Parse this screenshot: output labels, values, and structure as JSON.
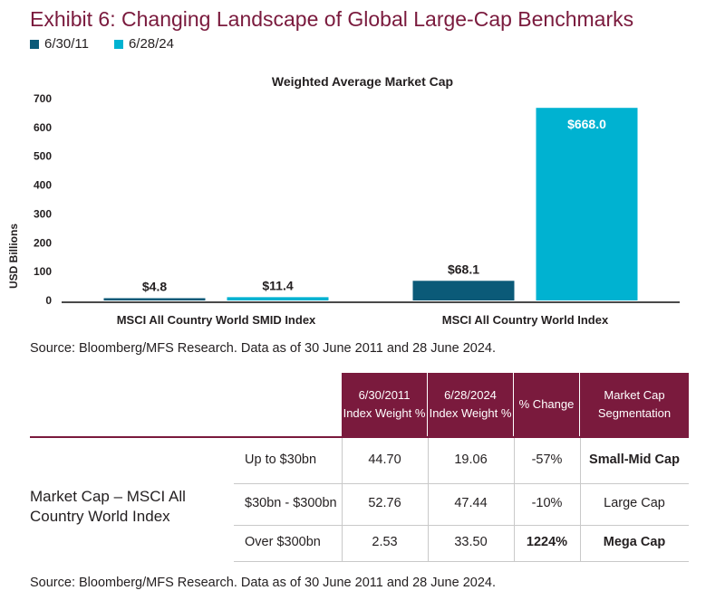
{
  "exhibit_title": "Exhibit 6: Changing Landscape of Global Large-Cap Benchmarks",
  "legend": [
    {
      "label": "6/30/11",
      "color": "#0b5a78"
    },
    {
      "label": "6/28/24",
      "color": "#00b2d1"
    }
  ],
  "chart_data": {
    "type": "bar",
    "title": "Weighted Average Market Cap",
    "xlabel": "",
    "ylabel": "USD Billions",
    "ylim": [
      0,
      700
    ],
    "yticks": [
      "0",
      "100",
      "200",
      "300",
      "400",
      "500",
      "600",
      "700"
    ],
    "grid": false,
    "legend_position": "top-left",
    "categories": [
      "MSCI All Country World SMID Index",
      "MSCI All Country World Index"
    ],
    "series": [
      {
        "name": "6/30/11",
        "color": "#0b5a78",
        "values": [
          4.8,
          68.1
        ],
        "labels": [
          "$4.8",
          "$68.1"
        ]
      },
      {
        "name": "6/28/24",
        "color": "#00b2d1",
        "values": [
          11.4,
          668.0
        ],
        "labels": [
          "$11.4",
          "$668.0"
        ]
      }
    ]
  },
  "source_note_top": "Source: Bloomberg/MFS Research. Data as of 30 June 2011 and 28 June 2024.",
  "table": {
    "headers": [
      {
        "line1": "6/30/2011",
        "line2": "Index Weight %"
      },
      {
        "line1": "6/28/2024",
        "line2": "Index Weight %"
      },
      {
        "line1": "% Change",
        "line2": ""
      },
      {
        "line1": "Market Cap",
        "line2": "Segmentation"
      }
    ],
    "row_group_label": "Market Cap – MSCI All Country World Index",
    "rows": [
      {
        "range": "Up to $30bn",
        "w2011": "44.70",
        "w2024": "19.06",
        "change": "-57%",
        "segment": "Small-Mid Cap"
      },
      {
        "range": "$30bn - $300bn",
        "w2011": "52.76",
        "w2024": "47.44",
        "change": "-10%",
        "segment": "Large Cap"
      },
      {
        "range": "Over $300bn",
        "w2011": "2.53",
        "w2024": "33.50",
        "change": "1224%",
        "segment": "Mega Cap"
      }
    ]
  },
  "source_note_bottom": "Source: Bloomberg/MFS Research. Data as of 30 June 2011 and 28 June 2024."
}
